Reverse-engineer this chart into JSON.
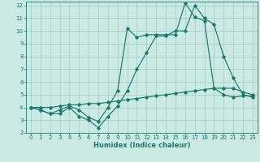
{
  "xlabel": "Humidex (Indice chaleur)",
  "bg_color": "#cceae4",
  "line_color": "#1a7a6e",
  "grid_color": "#aacfc8",
  "xlim": [
    -0.5,
    23.5
  ],
  "ylim": [
    2,
    12.3
  ],
  "xticks": [
    0,
    1,
    2,
    3,
    4,
    5,
    6,
    7,
    8,
    9,
    10,
    11,
    12,
    13,
    14,
    15,
    16,
    17,
    18,
    19,
    20,
    21,
    22,
    23
  ],
  "yticks": [
    2,
    3,
    4,
    5,
    6,
    7,
    8,
    9,
    10,
    11,
    12
  ],
  "line1_x": [
    0,
    1,
    2,
    3,
    4,
    5,
    6,
    7,
    8,
    9,
    10,
    11,
    12,
    13,
    14,
    15,
    16,
    17,
    18,
    19,
    20,
    21,
    22,
    23
  ],
  "line1_y": [
    4.0,
    3.8,
    3.5,
    3.5,
    4.0,
    3.3,
    3.0,
    2.4,
    3.3,
    4.1,
    5.3,
    7.0,
    8.3,
    9.6,
    9.6,
    10.0,
    10.0,
    12.0,
    11.0,
    10.5,
    8.0,
    6.3,
    5.0,
    4.8
  ],
  "line2_x": [
    0,
    1,
    2,
    3,
    4,
    5,
    6,
    7,
    8,
    9,
    10,
    11,
    12,
    13,
    14,
    15,
    16,
    17,
    18,
    19,
    20,
    21,
    22,
    23
  ],
  "line2_y": [
    4.0,
    3.8,
    3.5,
    3.8,
    4.1,
    3.8,
    3.2,
    2.9,
    4.0,
    5.3,
    10.2,
    9.5,
    9.7,
    9.7,
    9.7,
    9.7,
    12.2,
    11.1,
    10.8,
    5.5,
    5.0,
    4.8,
    4.9,
    4.9
  ],
  "line3_x": [
    0,
    1,
    2,
    3,
    4,
    5,
    6,
    7,
    8,
    9,
    10,
    11,
    12,
    13,
    14,
    15,
    16,
    17,
    18,
    19,
    20,
    21,
    22,
    23
  ],
  "line3_y": [
    4.0,
    4.0,
    4.0,
    4.1,
    4.2,
    4.2,
    4.3,
    4.3,
    4.4,
    4.5,
    4.6,
    4.7,
    4.8,
    4.9,
    5.0,
    5.1,
    5.2,
    5.3,
    5.4,
    5.5,
    5.5,
    5.5,
    5.2,
    5.0
  ],
  "xlabel_fontsize": 6.0,
  "tick_fontsize": 5.0
}
